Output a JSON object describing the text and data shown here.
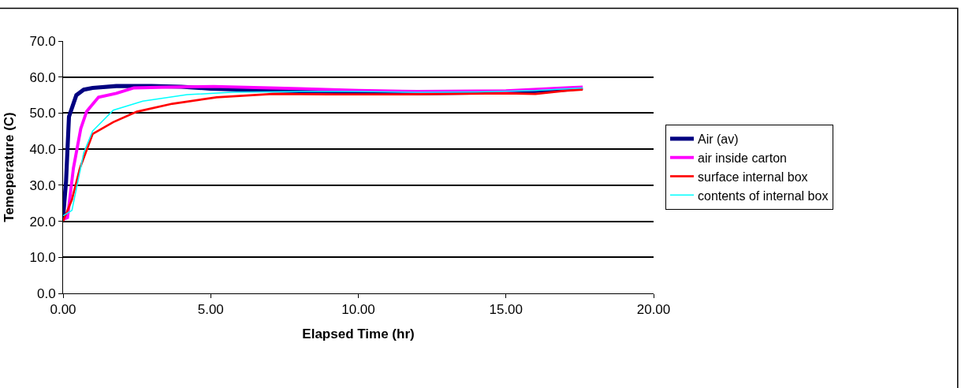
{
  "chart_data": {
    "type": "line",
    "xlabel": "Elapsed Time (hr)",
    "ylabel": "Temeperature (C)",
    "xlim": [
      0,
      20
    ],
    "xticks": [
      {
        "value": 0,
        "label": "0.00"
      },
      {
        "value": 5,
        "label": "5.00"
      },
      {
        "value": 10,
        "label": "10.00"
      },
      {
        "value": 15,
        "label": "15.00"
      },
      {
        "value": 20,
        "label": "20.00"
      }
    ],
    "ylim": [
      0,
      70
    ],
    "yticks": [
      {
        "value": 0,
        "label": "0.0"
      },
      {
        "value": 10,
        "label": "10.0"
      },
      {
        "value": 20,
        "label": "20.0"
      },
      {
        "value": 30,
        "label": "30.0"
      },
      {
        "value": 40,
        "label": "40.0"
      },
      {
        "value": 50,
        "label": "50.0"
      },
      {
        "value": 60,
        "label": "60.0"
      },
      {
        "value": 70,
        "label": "70.0"
      }
    ],
    "grid": "y",
    "legend": "right",
    "marker": "none",
    "line_style": "solid",
    "series": [
      {
        "name": "Air (av)",
        "color": "#000080",
        "x": [
          0,
          0.1,
          0.2,
          0.45,
          0.7,
          1.0,
          1.8,
          3.0,
          4.0,
          5.0,
          7.0,
          10.0,
          12.0,
          15.0,
          17.0,
          17.6
        ],
        "values": [
          21,
          31,
          49,
          55,
          56.5,
          57,
          57.5,
          57.5,
          57.3,
          56.8,
          56.3,
          55.8,
          55.5,
          55.8,
          56.5,
          57
        ]
      },
      {
        "name": "air inside carton",
        "color": "#ff00ff",
        "x": [
          0,
          0.15,
          0.35,
          0.6,
          0.8,
          1.2,
          1.8,
          2.4,
          3.5,
          5.1,
          7.0,
          8.0,
          10.0,
          12.0,
          15.0,
          17.0,
          17.6
        ],
        "values": [
          20.5,
          21,
          34.7,
          45.7,
          50.5,
          54.4,
          55.5,
          57,
          57.2,
          57.4,
          57,
          56.8,
          56.3,
          56,
          56.2,
          57,
          57.2
        ]
      },
      {
        "name": "surface internal box",
        "color": "#ff0000",
        "x": [
          0,
          0.3,
          0.57,
          1.0,
          1.7,
          2.5,
          3.7,
          5.2,
          7.1,
          9.0,
          11.0,
          13.0,
          15.0,
          16.0,
          17.0,
          17.6
        ],
        "values": [
          20,
          26,
          34.7,
          44.2,
          47.5,
          50.4,
          52.6,
          54.4,
          55.3,
          55.2,
          55.2,
          55.3,
          55.5,
          55.3,
          56.2,
          56.5
        ]
      },
      {
        "name": "contents of internal box",
        "color": "#00ffff",
        "x": [
          0,
          0.3,
          0.5,
          0.7,
          1.0,
          1.7,
          2.7,
          4.2,
          5.7,
          8.0,
          10.0,
          12.0,
          14.0,
          16.0,
          17.6
        ],
        "values": [
          21.5,
          23,
          31,
          39,
          45,
          50.8,
          53.3,
          55.1,
          55.8,
          56,
          56,
          55.8,
          55.9,
          56.3,
          57
        ]
      }
    ]
  }
}
